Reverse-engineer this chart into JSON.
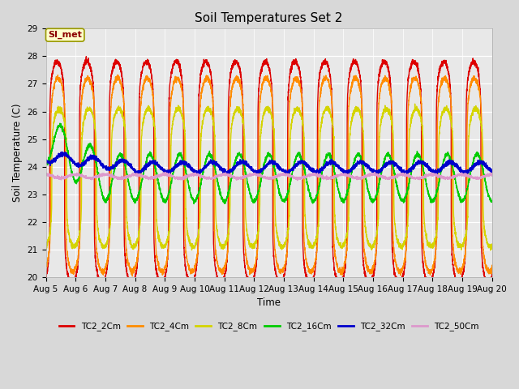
{
  "title": "Soil Temperatures Set 2",
  "xlabel": "Time",
  "ylabel": "Soil Temperature (C)",
  "ylim": [
    20.0,
    29.0
  ],
  "yticks": [
    20.0,
    21.0,
    22.0,
    23.0,
    24.0,
    25.0,
    26.0,
    27.0,
    28.0,
    29.0
  ],
  "x_labels": [
    "Aug 5",
    "Aug 6",
    "Aug 7",
    "Aug 8",
    "Aug 9",
    "Aug 10",
    "Aug 11",
    "Aug 12",
    "Aug 13",
    "Aug 14",
    "Aug 15",
    "Aug 16",
    "Aug 17",
    "Aug 18",
    "Aug 19",
    "Aug 20"
  ],
  "series_names": [
    "TC2_2Cm",
    "TC2_4Cm",
    "TC2_8Cm",
    "TC2_16Cm",
    "TC2_32Cm",
    "TC2_50Cm"
  ],
  "series_colors": [
    "#dd0000",
    "#ff8c00",
    "#d4d400",
    "#00cc00",
    "#0000cc",
    "#dd99cc"
  ],
  "series_lw": [
    1.0,
    1.0,
    1.0,
    1.0,
    1.2,
    1.0
  ],
  "legend_label": "SI_met",
  "fig_bg_color": "#d8d8d8",
  "plot_bg_color": "#e8e8e8",
  "title_fontsize": 11,
  "tick_fontsize": 7.5,
  "label_fontsize": 8.5,
  "n_days": 15,
  "pts_per_day": 288
}
